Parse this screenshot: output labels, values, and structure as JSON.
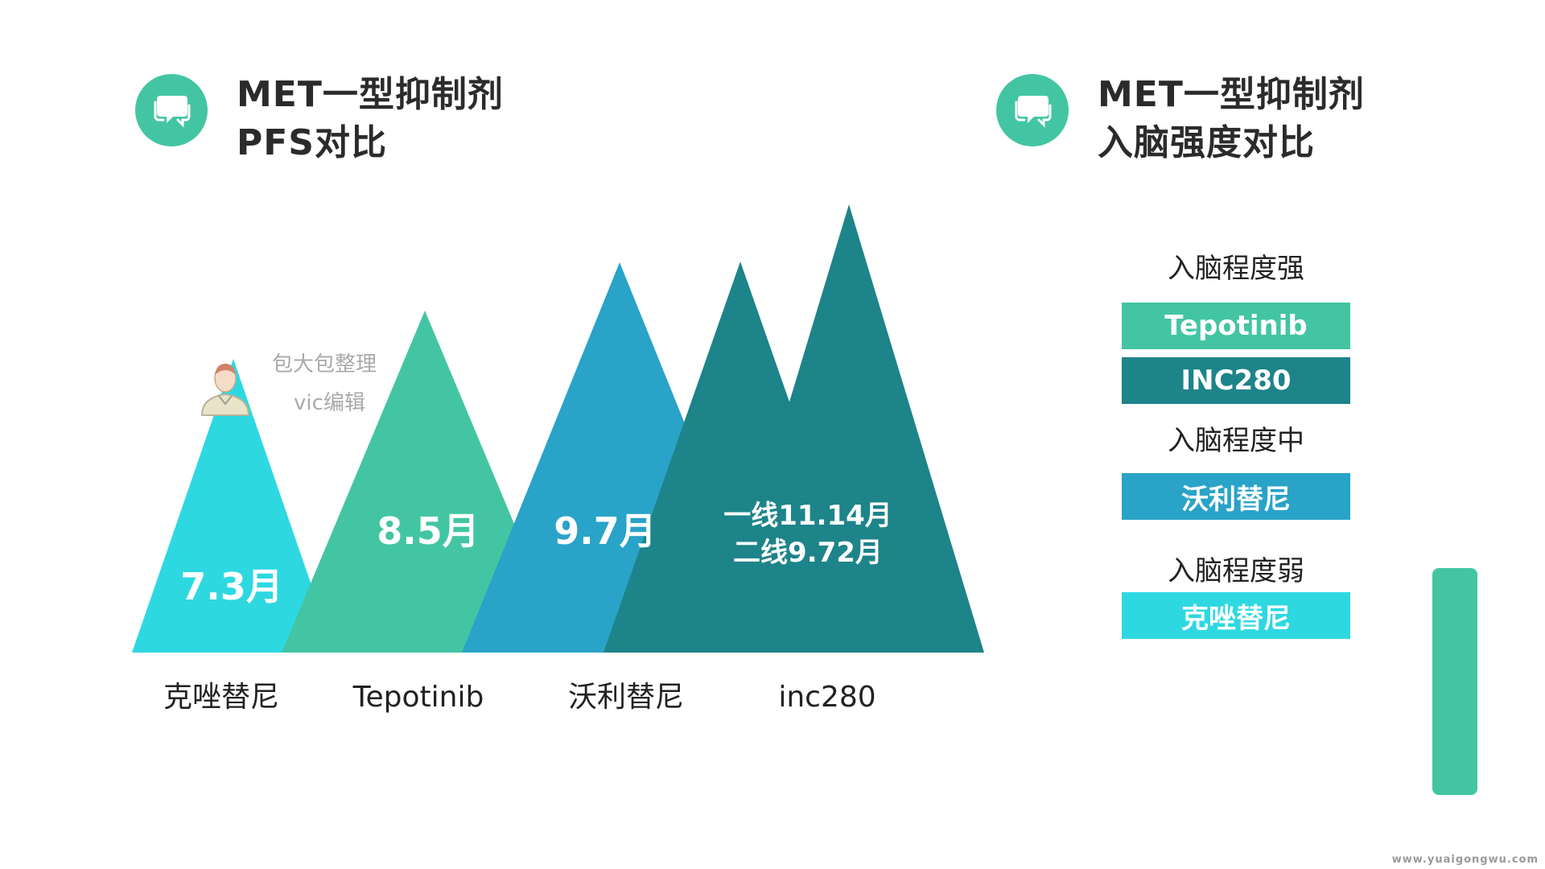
{
  "left_heading": {
    "title_line1": "MET一型抑制剂",
    "title_line2": "PFS对比",
    "icon": "chat-bubbles-icon"
  },
  "right_heading": {
    "title_line1": "MET一型抑制剂",
    "title_line2": "入脑强度对比",
    "icon": "chat-bubbles-icon"
  },
  "watermark": {
    "line1": "包大包整理",
    "line2": "vic编辑",
    "icon": "user-avatar-icon"
  },
  "chart_data": {
    "type": "bar",
    "categories": [
      "克唑替尼",
      "Tepotinib",
      "沃利替尼",
      "inc280"
    ],
    "series": [
      {
        "values": [
          7.3,
          8.5,
          9.7,
          9.72
        ]
      },
      {
        "values": [
          null,
          null,
          null,
          11.14
        ]
      }
    ],
    "data_labels": [
      "7.3月",
      "8.5月",
      "9.7月",
      "一线11.14月\n二线9.72月"
    ],
    "colors": [
      "#2ed8e1",
      "#43c5a3",
      "#29a3c7",
      "#1d8489"
    ],
    "title": "",
    "xlabel": "",
    "ylabel": "",
    "ylim": [
      0,
      12
    ],
    "grid": false
  },
  "legend": {
    "strong_label": "入脑程度强",
    "medium_label": "入脑程度中",
    "weak_label": "入脑程度弱",
    "items": [
      {
        "label": "Tepotinib",
        "color": "#43c5a3"
      },
      {
        "label": "INC280",
        "color": "#1d8489"
      },
      {
        "label": "沃利替尼",
        "color": "#29a3c7"
      },
      {
        "label": "克唑替尼",
        "color": "#2ed8e1"
      }
    ]
  },
  "site": "www.yuaigongwu.com"
}
